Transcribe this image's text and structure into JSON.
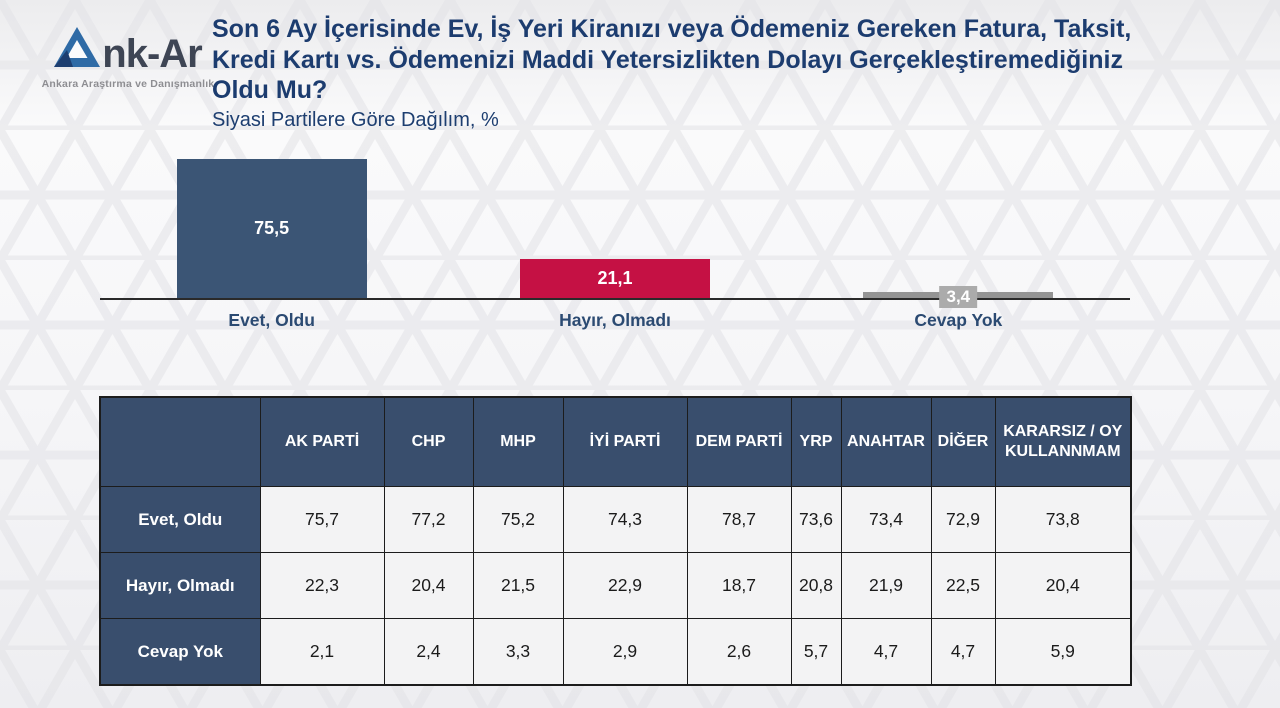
{
  "brand": {
    "logo_text": "nk-Ar",
    "logo_tagline": "Ankara Araştırma ve Danışmanlık"
  },
  "header": {
    "title": "Son 6 Ay İçerisinde Ev, İş Yeri Kiranızı veya Ödemeniz Gereken Fatura, Taksit, Kredi Kartı vs. Ödemenizi Maddi Yetersizlikten Dolayı Gerçekleştiremediğiniz Oldu Mu?",
    "subtitle": "Siyasi Partilere Göre Dağılım, %"
  },
  "colors": {
    "title_navy": "#1c3c6f",
    "bar_navy": "#3b5575",
    "bar_red": "#c51144",
    "bar_gray": "#949494",
    "badge_gray": "#ababab",
    "table_header_navy": "#394e6d",
    "axis_line": "#2a2a2a"
  },
  "chart_data": [
    {
      "type": "bar",
      "title": "",
      "xlabel": "",
      "ylabel": "",
      "categories": [
        "Evet, Oldu",
        "Hayır, Olmadı",
        "Cevap Yok"
      ],
      "values": [
        75.5,
        21.1,
        3.4
      ],
      "value_labels": [
        "75,5",
        "21,1",
        "3,4"
      ],
      "bar_colors": [
        "#3b5575",
        "#c51144",
        "#949494"
      ],
      "ylim": [
        0,
        80
      ],
      "grid": false,
      "legend": false
    },
    {
      "type": "table",
      "columns": [
        "",
        "AK PARTİ",
        "CHP",
        "MHP",
        "İYİ PARTİ",
        "DEM PARTİ",
        "YRP",
        "ANAHTAR",
        "DİĞER",
        "KARARSIZ / OY KULLANNMAM"
      ],
      "rows": [
        {
          "label": "Evet, Oldu",
          "values": [
            "75,7",
            "77,2",
            "75,2",
            "74,3",
            "78,7",
            "73,6",
            "73,4",
            "72,9",
            "73,8"
          ]
        },
        {
          "label": "Hayır, Olmadı",
          "values": [
            "22,3",
            "20,4",
            "21,5",
            "22,9",
            "18,7",
            "20,8",
            "21,9",
            "22,5",
            "20,4"
          ]
        },
        {
          "label": "Cevap Yok",
          "values": [
            "2,1",
            "2,4",
            "3,3",
            "2,9",
            "2,6",
            "5,7",
            "4,7",
            "4,7",
            "5,9"
          ]
        }
      ]
    }
  ]
}
